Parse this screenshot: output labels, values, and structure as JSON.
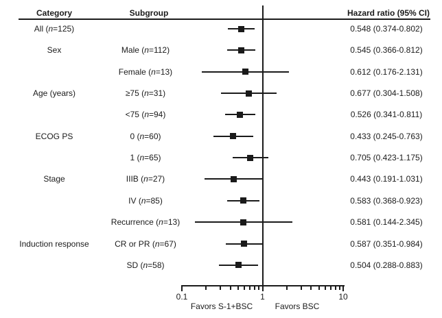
{
  "header": {
    "category": "Category",
    "subgroup": "Subgroup",
    "hazard_ratio": "Hazard ratio (95% CI)"
  },
  "axis": {
    "scale": "log",
    "min": 0.1,
    "max": 10,
    "major_ticks": [
      0.1,
      1,
      10
    ],
    "tick_labels": [
      "0.1",
      "1",
      "10"
    ],
    "minor_ticks": [
      0.2,
      0.3,
      0.4,
      0.5,
      0.6,
      0.7,
      0.8,
      0.9,
      2,
      3,
      4,
      5,
      6,
      7,
      8,
      9
    ],
    "reference_value": 1,
    "favors_left": "Favors S-1+BSC",
    "favors_right": "Favors BSC"
  },
  "colors": {
    "ink": "#1a1a1a",
    "background": "#ffffff"
  },
  "chart_data": {
    "type": "forest",
    "columns": [
      "Category",
      "Subgroup",
      "Hazard ratio (95% CI)"
    ],
    "x_axis": {
      "scale": "log",
      "range": [
        0.1,
        10
      ],
      "reference_line": 1
    },
    "rows": [
      {
        "category": "All (n=125)",
        "subgroup": "",
        "hr": 0.548,
        "ci_low": 0.374,
        "ci_high": 0.802,
        "label": "0.548 (0.374-0.802)"
      },
      {
        "category": "Sex",
        "subgroup": "Male (n=112)",
        "hr": 0.545,
        "ci_low": 0.366,
        "ci_high": 0.812,
        "label": "0.545 (0.366-0.812)"
      },
      {
        "category": "",
        "subgroup": "Female (n=13)",
        "hr": 0.612,
        "ci_low": 0.176,
        "ci_high": 2.131,
        "label": "0.612 (0.176-2.131)"
      },
      {
        "category": "Age (years)",
        "subgroup": "≥75 (n=31)",
        "hr": 0.677,
        "ci_low": 0.304,
        "ci_high": 1.508,
        "label": "0.677 (0.304-1.508)"
      },
      {
        "category": "",
        "subgroup": "<75 (n=94)",
        "hr": 0.526,
        "ci_low": 0.341,
        "ci_high": 0.811,
        "label": "0.526 (0.341-0.811)"
      },
      {
        "category": "ECOG PS",
        "subgroup": "0 (n=60)",
        "hr": 0.433,
        "ci_low": 0.245,
        "ci_high": 0.763,
        "label": "0.433 (0.245-0.763)"
      },
      {
        "category": "",
        "subgroup": "1 (n=65)",
        "hr": 0.705,
        "ci_low": 0.423,
        "ci_high": 1.175,
        "label": "0.705 (0.423-1.175)"
      },
      {
        "category": "Stage",
        "subgroup": "IIIB (n=27)",
        "hr": 0.443,
        "ci_low": 0.191,
        "ci_high": 1.031,
        "label": "0.443 (0.191-1.031)"
      },
      {
        "category": "",
        "subgroup": "IV (n=85)",
        "hr": 0.583,
        "ci_low": 0.368,
        "ci_high": 0.923,
        "label": "0.583 (0.368-0.923)"
      },
      {
        "category": "",
        "subgroup": "Recurrence (n=13)",
        "hr": 0.581,
        "ci_low": 0.144,
        "ci_high": 2.345,
        "label": "0.581 (0.144-2.345)"
      },
      {
        "category": "Induction response",
        "subgroup": "CR or PR (n=67)",
        "hr": 0.587,
        "ci_low": 0.351,
        "ci_high": 0.984,
        "label": "0.587 (0.351-0.984)"
      },
      {
        "category": "",
        "subgroup": "SD (n=58)",
        "hr": 0.504,
        "ci_low": 0.288,
        "ci_high": 0.883,
        "label": "0.504 (0.288-0.883)"
      }
    ]
  }
}
